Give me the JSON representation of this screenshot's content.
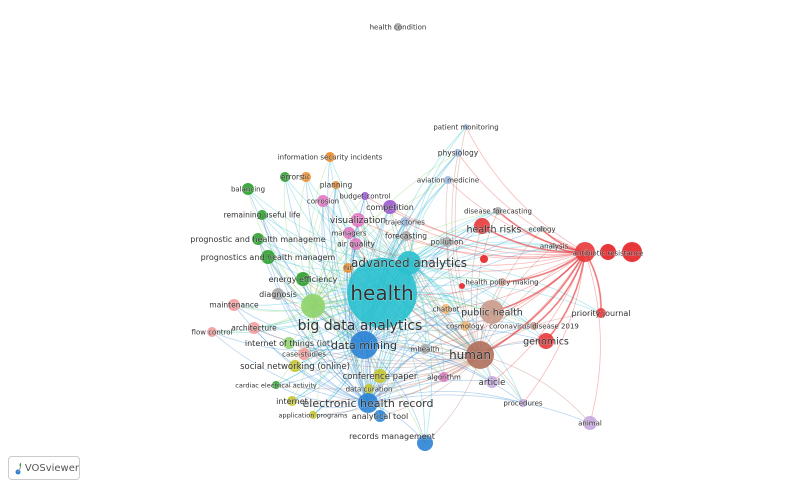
{
  "app": {
    "logo_text": "VOSviewer"
  },
  "clusters": {
    "red": "#e8373a",
    "green": "#2ca02c",
    "blue": "#2b83d4",
    "yellow": "#c5c52a",
    "purple": "#9b59d0",
    "cyan": "#29c0cf",
    "orange": "#f08a24",
    "brown": "#b0705c",
    "pink": "#e377c2",
    "gray": "#a9a9a9",
    "lightgreen": "#8fd36a",
    "lightblue": "#9dbbe6",
    "salmon": "#f49c9c",
    "peach": "#f5b56a",
    "lavender": "#c5a9e0",
    "tan": "#c99a8a"
  },
  "items": [
    {
      "label": "health condition",
      "cluster": "gray"
    },
    {
      "label": "patient monitoring",
      "cluster": "lightblue"
    },
    {
      "label": "physiology",
      "cluster": "lightblue"
    },
    {
      "label": "information security incidents",
      "cluster": "orange"
    },
    {
      "label": "errors",
      "cluster": "green"
    },
    {
      "label": "tic",
      "cluster": "orange"
    },
    {
      "label": "planning",
      "cluster": "orange"
    },
    {
      "label": "budget control",
      "cluster": "purple"
    },
    {
      "label": "aviation medicine",
      "cluster": "lightblue"
    },
    {
      "label": "balancing",
      "cluster": "green"
    },
    {
      "label": "corrosion",
      "cluster": "pink"
    },
    {
      "label": "competition",
      "cluster": "purple"
    },
    {
      "label": "remaining useful life",
      "cluster": "green"
    },
    {
      "label": "disease forecasting",
      "cluster": "gray"
    },
    {
      "label": "visualization",
      "cluster": "pink"
    },
    {
      "label": "trajectories",
      "cluster": "lightblue"
    },
    {
      "label": "prognostic and health manageme",
      "cluster": "green"
    },
    {
      "label": "managers",
      "cluster": "pink"
    },
    {
      "label": "forecasting",
      "cluster": "gray"
    },
    {
      "label": "health risks",
      "cluster": "red"
    },
    {
      "label": "ecology",
      "cluster": "gray"
    },
    {
      "label": "air quality",
      "cluster": "pink"
    },
    {
      "label": "pollution",
      "cluster": "gray"
    },
    {
      "label": "analysis",
      "cluster": "gray"
    },
    {
      "label": "antibiotic resistance",
      "cluster": "red"
    },
    {
      "label": "prognostics and health managem",
      "cluster": "green"
    },
    {
      "label": "hit",
      "cluster": "orange"
    },
    {
      "label": "advanced analytics",
      "cluster": "cyan"
    },
    {
      "label": "energy efficiency",
      "cluster": "green"
    },
    {
      "label": "health policy making",
      "cluster": "tan"
    },
    {
      "label": "diagnosis",
      "cluster": "gray"
    },
    {
      "label": "health",
      "cluster": "cyan"
    },
    {
      "label": "maintenance",
      "cluster": "salmon"
    },
    {
      "label": "chatbot",
      "cluster": "peach"
    },
    {
      "label": "public health",
      "cluster": "tan"
    },
    {
      "label": "priority journal",
      "cluster": "red"
    },
    {
      "label": "flow control",
      "cluster": "salmon"
    },
    {
      "label": "architecture",
      "cluster": "salmon"
    },
    {
      "label": "big data analytics",
      "cluster": "lightgreen"
    },
    {
      "label": "cosmology",
      "cluster": "peach"
    },
    {
      "label": "coronavirus disease 2019",
      "cluster": "tan"
    },
    {
      "label": "internet of things (iot)",
      "cluster": "lightgreen"
    },
    {
      "label": "data mining",
      "cluster": "blue"
    },
    {
      "label": "genomics",
      "cluster": "red"
    },
    {
      "label": "case-studies",
      "cluster": "salmon"
    },
    {
      "label": "mhealth",
      "cluster": "gray"
    },
    {
      "label": "human",
      "cluster": "brown"
    },
    {
      "label": "social networking (online)",
      "cluster": "yellow"
    },
    {
      "label": "conference paper",
      "cluster": "yellow"
    },
    {
      "label": "algorithm",
      "cluster": "pink"
    },
    {
      "label": "article",
      "cluster": "lavender"
    },
    {
      "label": "cardiac electrical activity",
      "cluster": "green"
    },
    {
      "label": "data curation",
      "cluster": "yellow"
    },
    {
      "label": "electronic health record",
      "cluster": "blue"
    },
    {
      "label": "internet",
      "cluster": "yellow"
    },
    {
      "label": "procedures",
      "cluster": "lavender"
    },
    {
      "label": "application programs",
      "cluster": "yellow"
    },
    {
      "label": "analytical tool",
      "cluster": "blue"
    },
    {
      "label": "animal",
      "cluster": "lavender"
    },
    {
      "label": "records management",
      "cluster": "blue"
    }
  ]
}
